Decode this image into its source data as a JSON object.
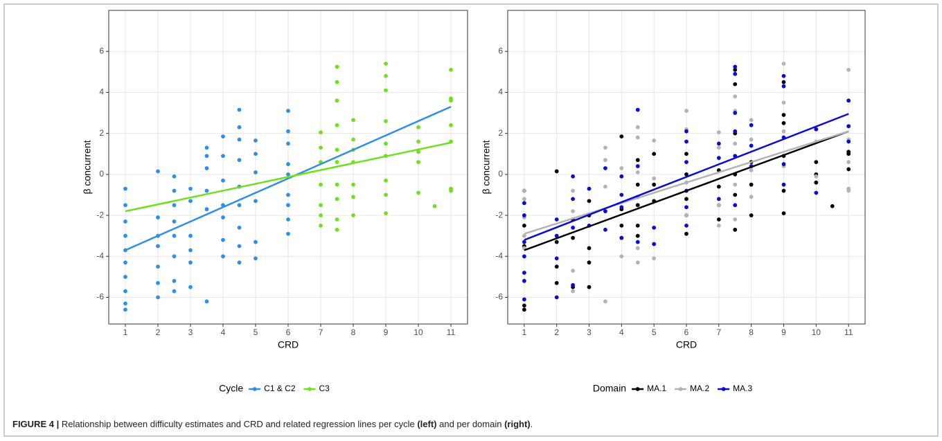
{
  "chart_data": [
    {
      "type": "scatter",
      "x_label": "CRD",
      "y_label": "β concurrent",
      "xlim": [
        0.49,
        11.51
      ],
      "ylim": [
        -7.3,
        8.0
      ],
      "xticks": [
        1,
        2,
        3,
        4,
        5,
        6,
        7,
        8,
        9,
        10,
        11
      ],
      "yticks": [
        -6,
        -4,
        -2,
        0,
        2,
        4,
        6
      ],
      "grid": true,
      "legend": "bottom",
      "legend_title": "Cycle",
      "series": [
        {
          "name": "C1 & C2",
          "color": "#2f8fe8",
          "x": [
            1,
            1,
            1,
            1,
            1,
            1,
            1,
            1,
            1,
            1,
            2,
            2,
            2,
            2,
            2,
            2,
            2,
            2.5,
            2.5,
            2.5,
            2.5,
            2.5,
            2.5,
            2.5,
            2.5,
            3,
            3,
            3,
            3,
            3,
            3,
            3.5,
            3.5,
            3.5,
            3.5,
            3.5,
            3.5,
            4,
            4,
            4,
            4,
            4,
            4,
            4,
            4.5,
            4.5,
            4.5,
            4.5,
            4.5,
            4.5,
            4.5,
            4.5,
            4.5,
            5,
            5,
            5,
            5,
            5,
            5,
            6,
            6,
            6,
            6,
            6,
            6,
            6,
            6,
            6
          ],
          "values": [
            -0.7,
            -1.5,
            -2.3,
            -3,
            -3.7,
            -4.3,
            -5,
            -5.7,
            -6.3,
            -6.6,
            0.15,
            -2.1,
            -3,
            -3.5,
            -4.5,
            -5.3,
            -6,
            -0.1,
            -0.8,
            -1.5,
            -2.3,
            -3,
            -4,
            -5.2,
            -5.7,
            -0.7,
            -1.3,
            -3,
            -3.7,
            -4.3,
            -5.5,
            1.3,
            0.9,
            0.3,
            -0.8,
            -1.7,
            -6.2,
            1.85,
            0.9,
            -0.3,
            -1.5,
            -2.1,
            -3.2,
            -4,
            3.15,
            2.3,
            1.7,
            0.7,
            -0.6,
            -1.5,
            -2.6,
            -3.5,
            -4.3,
            1.65,
            1,
            0.1,
            -1.3,
            -3.3,
            -4.1,
            3.1,
            2.1,
            1.5,
            0.5,
            0,
            -1,
            -1.5,
            -2.2,
            -2.9
          ],
          "fit_x": [
            1,
            11
          ],
          "fit_values": [
            -3.7,
            3.3
          ]
        },
        {
          "name": "C3",
          "color": "#6ee01c",
          "x": [
            7,
            7,
            7,
            7,
            7,
            7,
            7,
            7.5,
            7.5,
            7.5,
            7.5,
            7.5,
            7.5,
            7.5,
            7.5,
            7.5,
            7.5,
            8,
            8,
            8,
            8,
            8,
            8,
            8,
            9,
            9,
            9,
            9,
            9,
            9,
            9,
            9,
            9,
            10,
            10,
            10,
            10,
            10,
            10.5,
            11,
            11,
            11,
            11,
            11,
            11,
            11
          ],
          "values": [
            2.05,
            1.3,
            0.6,
            -0.5,
            -1.5,
            -2,
            -2.5,
            5.25,
            4.5,
            3.6,
            2.4,
            1.2,
            0.6,
            -0.5,
            -1.2,
            -2.2,
            -2.7,
            2.65,
            1.7,
            1.2,
            0.6,
            -0.5,
            -1.1,
            -2,
            5.4,
            4.8,
            4.1,
            2.6,
            1.5,
            0.9,
            -0.3,
            -1,
            -1.9,
            2.3,
            1.6,
            1.1,
            0.6,
            -0.9,
            -1.55,
            5.1,
            3.7,
            3.6,
            2.4,
            1.6,
            -0.7,
            -0.8
          ],
          "fit_x": [
            1,
            11
          ],
          "fit_values": [
            -1.8,
            1.55
          ]
        }
      ]
    },
    {
      "type": "scatter",
      "x_label": "CRD",
      "y_label": "β concurrent",
      "xlim": [
        0.49,
        11.51
      ],
      "ylim": [
        -7.3,
        8.0
      ],
      "xticks": [
        1,
        2,
        3,
        4,
        5,
        6,
        7,
        8,
        9,
        10,
        11
      ],
      "yticks": [
        -6,
        -4,
        -2,
        0,
        2,
        4,
        6
      ],
      "grid": true,
      "legend": "bottom",
      "legend_title": "Domain",
      "series": [
        {
          "name": "MA.1",
          "color": "#000000",
          "x": [
            1,
            1,
            1,
            1,
            1,
            2,
            2,
            2,
            2,
            2.5,
            2.5,
            2.5,
            3,
            3,
            3,
            3,
            3,
            4,
            4,
            4,
            4,
            4.5,
            4.5,
            4.5,
            4.5,
            4.5,
            5,
            5,
            5,
            6,
            6,
            6,
            6,
            6,
            7,
            7,
            7,
            7,
            7.5,
            7.5,
            7.5,
            7.5,
            7.5,
            7.5,
            8,
            8,
            8,
            9,
            9,
            9,
            9,
            9,
            9,
            10,
            10,
            10,
            10.5,
            11,
            11,
            11
          ],
          "values": [
            -0.8,
            -2.5,
            -3.5,
            -6.4,
            -6.6,
            0.15,
            -3.3,
            -4.5,
            -5.3,
            -2.2,
            -3.1,
            -5.5,
            -1.3,
            -2,
            -3.6,
            -4.3,
            -5.5,
            1.85,
            -1.7,
            -2.5,
            -3.1,
            0.7,
            -0.5,
            -1.5,
            -2.5,
            -3,
            1,
            -0.5,
            -1.3,
            1,
            0,
            -1.2,
            -2,
            -2.9,
            0.2,
            -0.6,
            -1.5,
            -2.2,
            5.1,
            4.4,
            2,
            0,
            -1,
            -2.7,
            0.6,
            -0.5,
            -2,
            4.5,
            2.9,
            2.5,
            0.9,
            -0.8,
            -1.9,
            0.6,
            0,
            -0.4,
            -1.55,
            1.1,
            1,
            0.25
          ],
          "fit_x": [
            1,
            11
          ],
          "fit_values": [
            -3.7,
            2.1
          ]
        },
        {
          "name": "MA.2",
          "color": "#b3b3b3",
          "x": [
            1,
            1,
            1,
            1,
            1,
            2.5,
            2.5,
            2.5,
            2.5,
            3.5,
            3.5,
            3.5,
            3.5,
            4,
            4,
            4.5,
            4.5,
            4.5,
            4.5,
            4.5,
            5,
            5,
            5,
            6,
            6,
            6,
            6,
            7,
            7,
            7,
            7,
            7.5,
            7.5,
            7.5,
            7.5,
            7.5,
            8,
            8,
            8,
            8,
            9,
            9,
            9,
            9,
            10,
            10,
            11,
            11,
            11,
            11,
            11,
            11
          ],
          "values": [
            -0.8,
            -1.2,
            -2.1,
            -3,
            -3.6,
            -0.8,
            -1.8,
            -4.7,
            -5.7,
            1.3,
            0.7,
            -0.6,
            -6.2,
            0.3,
            -4,
            2.3,
            1.8,
            0.1,
            -3.6,
            -4.3,
            1.65,
            -0.2,
            -4.1,
            3.1,
            2.2,
            -0.4,
            -2,
            2.05,
            1.3,
            -1.5,
            -2.5,
            3.8,
            3.1,
            1.5,
            -0.5,
            -2.2,
            2.65,
            1.7,
            0.2,
            -1.1,
            5.4,
            3.5,
            2.1,
            0.4,
            1.6,
            -0.1,
            5.1,
            3.6,
            1.7,
            0.6,
            -0.7,
            -0.8
          ],
          "fit_x": [
            1,
            11
          ],
          "fit_values": [
            -2.9,
            2.1
          ]
        },
        {
          "name": "MA.3",
          "color": "#0a0ad6",
          "x": [
            1,
            1,
            1,
            1,
            1,
            1,
            1,
            2,
            2,
            2,
            2,
            2.5,
            2.5,
            2.5,
            2.5,
            3,
            3,
            3.5,
            3.5,
            3.5,
            4,
            4,
            4,
            4,
            4.5,
            4.5,
            4.5,
            4.5,
            5,
            5,
            6,
            6,
            6,
            6,
            6,
            6,
            7,
            7,
            7,
            7.5,
            7.5,
            7.5,
            7.5,
            7.5,
            7.5,
            8,
            8,
            8,
            9,
            9,
            9,
            9,
            9,
            10,
            10,
            11,
            11,
            11
          ],
          "values": [
            -1.4,
            -2,
            -3.3,
            -4,
            -4.8,
            -5.2,
            -6.1,
            -2.2,
            -3,
            -4.1,
            -6,
            -0.1,
            -1.2,
            -2.6,
            -5.4,
            -0.7,
            -2.5,
            0.3,
            -1.8,
            -2.7,
            -0.1,
            -1,
            -1.6,
            -3.1,
            3.15,
            0.4,
            -1.1,
            -3.3,
            -2.6,
            -3.4,
            2.1,
            1.6,
            0.6,
            -0.8,
            -1.6,
            -2.5,
            1.5,
            0.8,
            -1.2,
            5.25,
            4.9,
            3,
            2.1,
            0.9,
            -1.5,
            2.4,
            1.4,
            0.4,
            4.8,
            4.3,
            1.8,
            0.5,
            -0.5,
            2.2,
            -0.9,
            3.6,
            2.35,
            1.6
          ],
          "fit_x": [
            1,
            11
          ],
          "fit_values": [
            -3.2,
            2.95
          ]
        }
      ]
    }
  ],
  "caption": {
    "parts": [
      "FIGURE 4 |",
      " Relationship between difficulty estimates and CRD and related regression lines per cycle ",
      "(left)",
      " and per domain ",
      "(right)",
      "."
    ]
  }
}
